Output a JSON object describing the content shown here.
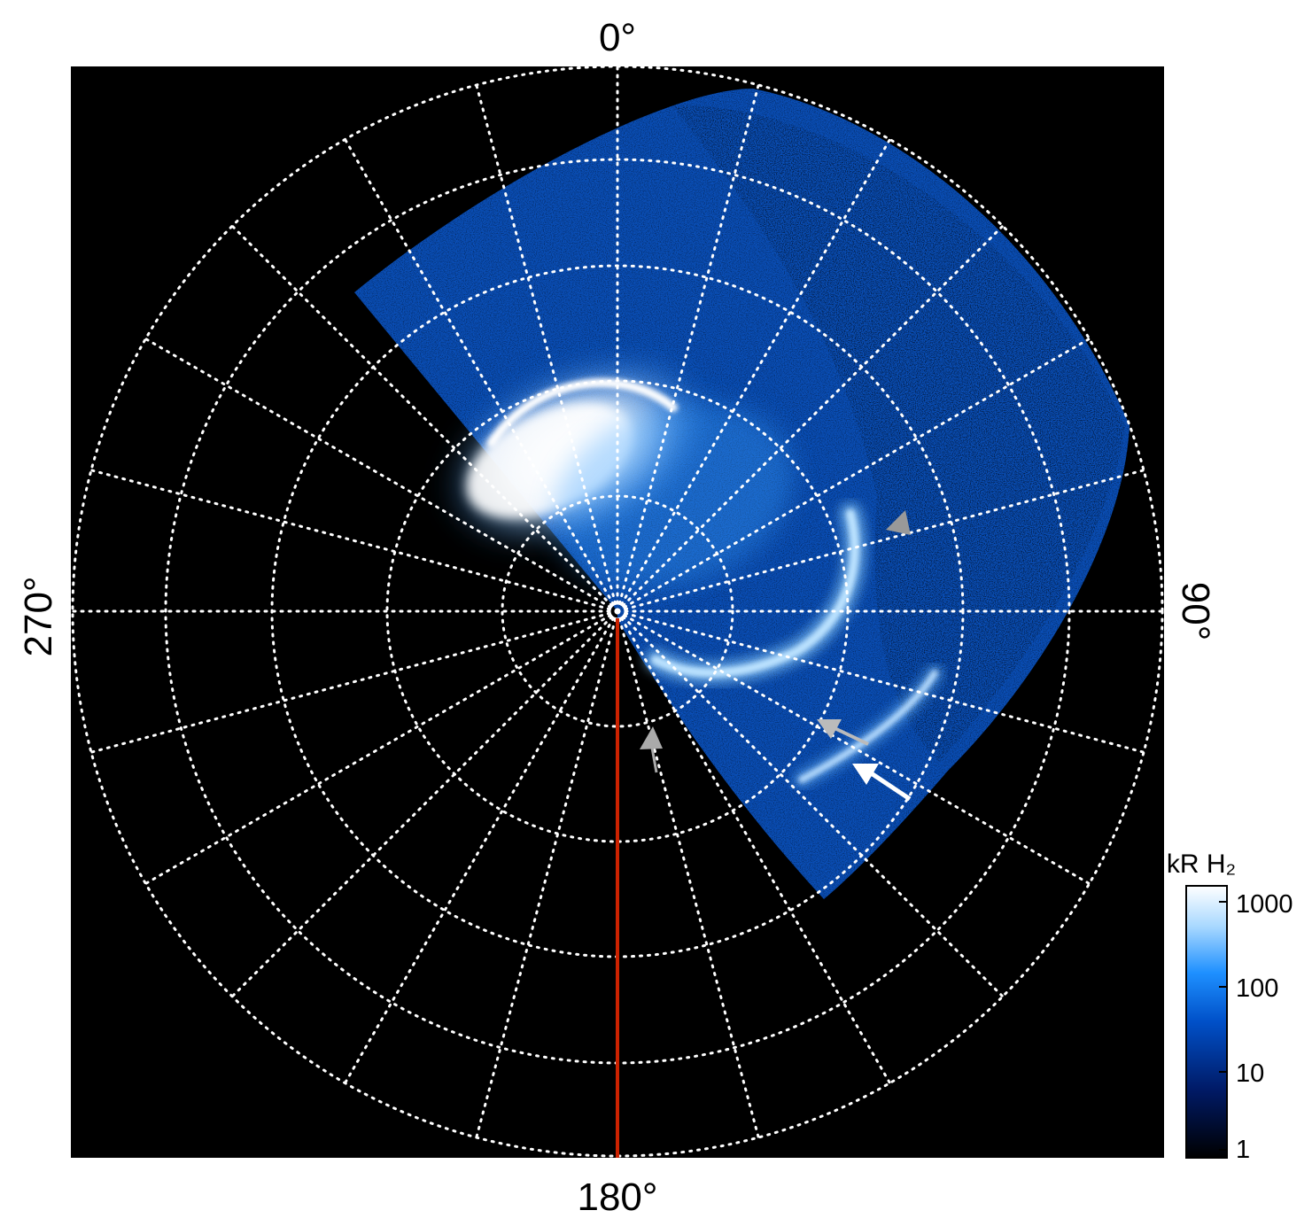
{
  "figure": {
    "labels": {
      "top": "0°",
      "bottom": "180°",
      "left": "270°",
      "right": "90°"
    },
    "colorbar": {
      "title": "kR H₂",
      "scale": "log",
      "ticks": [
        "1000",
        "100",
        "10",
        "1"
      ],
      "colors": [
        "#000000",
        "#001a66",
        "#0050c8",
        "#1e90ff",
        "#a8d8ff",
        "#ffffff"
      ]
    },
    "colors": {
      "background": "#000000",
      "grid": "#ffffff",
      "meridian_line": "#cc2200",
      "arrow_white": "#ffffff",
      "arrow_gray": "#999999"
    },
    "features": [
      "auroral-main-oval",
      "polar-emission-region",
      "secondary-arc",
      "arrow-markers"
    ]
  }
}
